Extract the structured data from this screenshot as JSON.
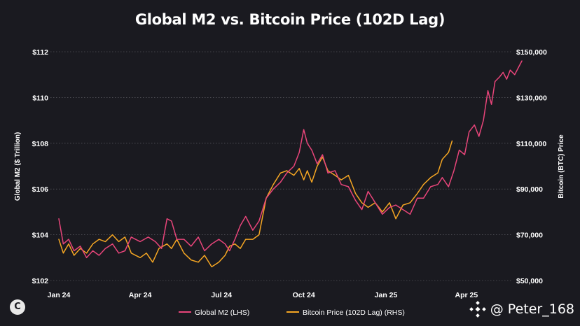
{
  "chart_data": {
    "type": "line",
    "title": "Global M2 vs. Bitcoin Price (102D Lag)",
    "x_ticks": [
      "Jan 24",
      "Apr 24",
      "Jul 24",
      "Oct 24",
      "Jan 25",
      "Apr 25"
    ],
    "x_range": [
      "2024-01-01",
      "2025-05-15"
    ],
    "ylabel_left": "Global M2 ($ Trillion)",
    "ylabel_right": "Bitcoin (BTC) Price",
    "ylim_left": [
      102,
      112
    ],
    "ylim_right": [
      50000,
      150000
    ],
    "y_ticks_left": [
      "$102",
      "$104",
      "$106",
      "$108",
      "$110",
      "$112"
    ],
    "y_ticks_right": [
      "$50,000",
      "$70,000",
      "$90,000",
      "$110,000",
      "$130,000",
      "$150,000"
    ],
    "grid": "horizontal",
    "legend": "bottom",
    "series": [
      {
        "name": "Global M2 (LHS)",
        "axis": "left",
        "color": "#e8457a",
        "points": [
          [
            "2024-01-01",
            104.7
          ],
          [
            "2024-01-06",
            103.6
          ],
          [
            "2024-01-12",
            103.8
          ],
          [
            "2024-01-18",
            103.3
          ],
          [
            "2024-01-25",
            103.5
          ],
          [
            "2024-02-01",
            103.0
          ],
          [
            "2024-02-08",
            103.3
          ],
          [
            "2024-02-15",
            103.1
          ],
          [
            "2024-02-22",
            103.4
          ],
          [
            "2024-03-01",
            103.6
          ],
          [
            "2024-03-08",
            103.2
          ],
          [
            "2024-03-15",
            103.3
          ],
          [
            "2024-03-22",
            103.9
          ],
          [
            "2024-04-01",
            103.7
          ],
          [
            "2024-04-10",
            103.9
          ],
          [
            "2024-04-18",
            103.7
          ],
          [
            "2024-04-25",
            103.4
          ],
          [
            "2024-05-01",
            104.7
          ],
          [
            "2024-05-06",
            104.6
          ],
          [
            "2024-05-12",
            103.8
          ],
          [
            "2024-05-20",
            103.8
          ],
          [
            "2024-05-28",
            103.5
          ],
          [
            "2024-06-05",
            103.9
          ],
          [
            "2024-06-12",
            103.3
          ],
          [
            "2024-06-20",
            103.6
          ],
          [
            "2024-06-28",
            103.8
          ],
          [
            "2024-07-05",
            103.6
          ],
          [
            "2024-07-10",
            103.3
          ],
          [
            "2024-07-16",
            103.8
          ],
          [
            "2024-07-22",
            104.4
          ],
          [
            "2024-07-28",
            104.8
          ],
          [
            "2024-08-05",
            104.2
          ],
          [
            "2024-08-12",
            104.6
          ],
          [
            "2024-08-20",
            105.6
          ],
          [
            "2024-08-28",
            106.0
          ],
          [
            "2024-09-05",
            106.3
          ],
          [
            "2024-09-12",
            106.7
          ],
          [
            "2024-09-20",
            107.0
          ],
          [
            "2024-09-26",
            107.6
          ],
          [
            "2024-10-01",
            108.6
          ],
          [
            "2024-10-05",
            108.0
          ],
          [
            "2024-10-10",
            107.7
          ],
          [
            "2024-10-16",
            107.1
          ],
          [
            "2024-10-22",
            107.5
          ],
          [
            "2024-10-28",
            106.7
          ],
          [
            "2024-11-05",
            106.8
          ],
          [
            "2024-11-12",
            106.2
          ],
          [
            "2024-11-20",
            106.1
          ],
          [
            "2024-11-28",
            105.5
          ],
          [
            "2024-12-05",
            105.1
          ],
          [
            "2024-12-12",
            105.9
          ],
          [
            "2024-12-20",
            105.4
          ],
          [
            "2024-12-28",
            104.9
          ],
          [
            "2025-01-05",
            105.2
          ],
          [
            "2025-01-12",
            105.3
          ],
          [
            "2025-01-20",
            105.1
          ],
          [
            "2025-01-28",
            104.9
          ],
          [
            "2025-02-05",
            105.6
          ],
          [
            "2025-02-12",
            105.6
          ],
          [
            "2025-02-20",
            106.1
          ],
          [
            "2025-02-28",
            106.2
          ],
          [
            "2025-03-05",
            106.5
          ],
          [
            "2025-03-12",
            106.1
          ],
          [
            "2025-03-18",
            106.8
          ],
          [
            "2025-03-24",
            107.7
          ],
          [
            "2025-03-30",
            107.5
          ],
          [
            "2025-04-04",
            108.5
          ],
          [
            "2025-04-10",
            108.8
          ],
          [
            "2025-04-15",
            108.3
          ],
          [
            "2025-04-20",
            109.0
          ],
          [
            "2025-04-25",
            110.3
          ],
          [
            "2025-04-29",
            109.7
          ],
          [
            "2025-05-03",
            110.7
          ],
          [
            "2025-05-08",
            110.9
          ],
          [
            "2025-05-12",
            111.1
          ],
          [
            "2025-05-16",
            110.8
          ],
          [
            "2025-05-20",
            111.2
          ],
          [
            "2025-05-25",
            111.0
          ],
          [
            "2025-05-29",
            111.3
          ],
          [
            "2025-06-02",
            111.6
          ]
        ]
      },
      {
        "name": "Bitcoin Price (102D Lag) (RHS)",
        "axis": "right",
        "color": "#f5a623",
        "points": [
          [
            "2024-01-01",
            68000
          ],
          [
            "2024-01-06",
            62000
          ],
          [
            "2024-01-12",
            66000
          ],
          [
            "2024-01-18",
            61000
          ],
          [
            "2024-01-25",
            64000
          ],
          [
            "2024-02-01",
            62000
          ],
          [
            "2024-02-08",
            66000
          ],
          [
            "2024-02-15",
            68000
          ],
          [
            "2024-02-22",
            67000
          ],
          [
            "2024-03-01",
            70000
          ],
          [
            "2024-03-08",
            67000
          ],
          [
            "2024-03-15",
            69000
          ],
          [
            "2024-03-22",
            62000
          ],
          [
            "2024-04-01",
            60000
          ],
          [
            "2024-04-08",
            62000
          ],
          [
            "2024-04-15",
            58000
          ],
          [
            "2024-04-22",
            64000
          ],
          [
            "2024-05-01",
            66000
          ],
          [
            "2024-05-06",
            64000
          ],
          [
            "2024-05-12",
            68000
          ],
          [
            "2024-05-20",
            62000
          ],
          [
            "2024-05-28",
            59000
          ],
          [
            "2024-06-05",
            58000
          ],
          [
            "2024-06-12",
            61000
          ],
          [
            "2024-06-20",
            56000
          ],
          [
            "2024-06-28",
            58000
          ],
          [
            "2024-07-05",
            61000
          ],
          [
            "2024-07-10",
            65000
          ],
          [
            "2024-07-16",
            66000
          ],
          [
            "2024-07-22",
            64000
          ],
          [
            "2024-07-28",
            68000
          ],
          [
            "2024-08-05",
            68000
          ],
          [
            "2024-08-12",
            70000
          ],
          [
            "2024-08-20",
            86000
          ],
          [
            "2024-08-28",
            92000
          ],
          [
            "2024-09-05",
            97000
          ],
          [
            "2024-09-12",
            98000
          ],
          [
            "2024-09-20",
            96000
          ],
          [
            "2024-09-26",
            99000
          ],
          [
            "2024-10-01",
            94000
          ],
          [
            "2024-10-05",
            98000
          ],
          [
            "2024-10-10",
            93000
          ],
          [
            "2024-10-16",
            100000
          ],
          [
            "2024-10-22",
            104000
          ],
          [
            "2024-10-28",
            98000
          ],
          [
            "2024-11-05",
            96000
          ],
          [
            "2024-11-12",
            94000
          ],
          [
            "2024-11-20",
            96000
          ],
          [
            "2024-11-28",
            88000
          ],
          [
            "2024-12-05",
            84000
          ],
          [
            "2024-12-12",
            82000
          ],
          [
            "2024-12-20",
            84000
          ],
          [
            "2024-12-28",
            80000
          ],
          [
            "2025-01-05",
            84000
          ],
          [
            "2025-01-12",
            77000
          ],
          [
            "2025-01-20",
            83000
          ],
          [
            "2025-01-28",
            84000
          ],
          [
            "2025-02-05",
            88000
          ],
          [
            "2025-02-12",
            92000
          ],
          [
            "2025-02-20",
            95000
          ],
          [
            "2025-02-28",
            97000
          ],
          [
            "2025-03-05",
            103000
          ],
          [
            "2025-03-12",
            106000
          ],
          [
            "2025-03-16",
            111000
          ]
        ]
      }
    ]
  },
  "watermark": "@ Peter_168",
  "logo_letter": "C"
}
